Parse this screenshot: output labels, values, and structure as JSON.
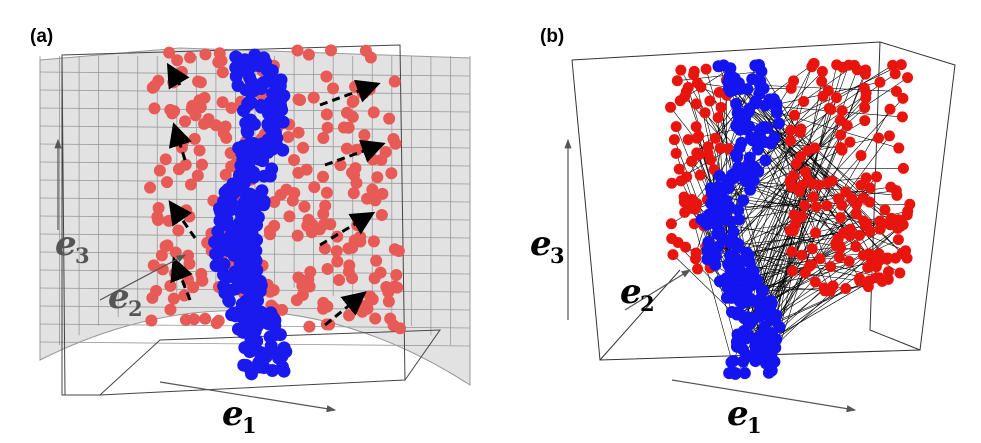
{
  "panels": [
    {
      "label": "(a)",
      "axes": [
        {
          "symbol": "e",
          "index": "1"
        },
        {
          "symbol": "e",
          "index": "2"
        },
        {
          "symbol": "e",
          "index": "3"
        }
      ]
    },
    {
      "label": "(b)",
      "axes": [
        {
          "symbol": "e",
          "index": "1"
        },
        {
          "symbol": "e",
          "index": "2"
        },
        {
          "symbol": "e",
          "index": "3"
        }
      ]
    }
  ]
}
